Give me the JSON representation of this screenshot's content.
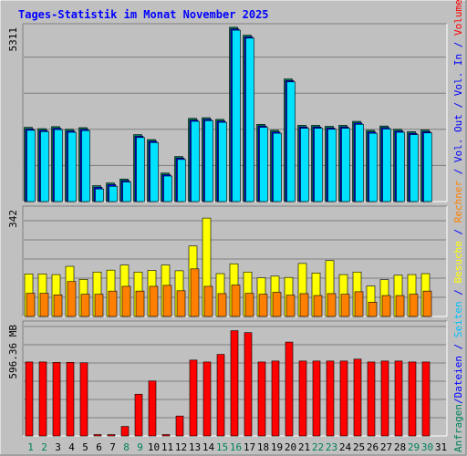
{
  "title": "Tages-Statistik im Monat November 2025",
  "side_labels": [
    {
      "text": "Anfragen",
      "color": "#00805c"
    },
    {
      "text": "/",
      "color": "#0000ff"
    },
    {
      "text": "Dateien",
      "color": "#0000ff"
    },
    {
      "text": " / ",
      "color": "#0000ff"
    },
    {
      "text": "Seiten",
      "color": "#00c0ff"
    },
    {
      "text": " / ",
      "color": "#0000ff"
    },
    {
      "text": "Besuche",
      "color": "#ffff00"
    },
    {
      "text": " / ",
      "color": "#0000ff"
    },
    {
      "text": "Rechner",
      "color": "#ff8000"
    },
    {
      "text": " / ",
      "color": "#0000ff"
    },
    {
      "text": "Vol. Out",
      "color": "#0000ff"
    },
    {
      "text": " / ",
      "color": "#0000ff"
    },
    {
      "text": "Vol. In",
      "color": "#0000ff"
    },
    {
      "text": " / ",
      "color": "#0000ff"
    },
    {
      "text": "Volumen",
      "color": "#ff0000"
    }
  ],
  "colors": {
    "background": "#c0c0c0",
    "title": "#0000ff",
    "weekend_day": "#00805c",
    "weekday": "#000000",
    "anfragen": "#00805c",
    "dateien": "#0000ff",
    "seiten": "#00e0ff",
    "besuche": "#ffff00",
    "rechner": "#ff8000",
    "volumen": "#ff0000"
  },
  "chart_data": [
    {
      "type": "bar",
      "panel": "top",
      "ymax_label": "5311",
      "ylim": [
        0,
        5311
      ],
      "categories": [
        "1",
        "2",
        "3",
        "4",
        "5",
        "6",
        "7",
        "8",
        "9",
        "10",
        "11",
        "12",
        "13",
        "14",
        "15",
        "16",
        "17",
        "18",
        "19",
        "20",
        "21",
        "22",
        "23",
        "24",
        "25",
        "26",
        "27",
        "28",
        "29",
        "30",
        "31"
      ],
      "weekend_days": [
        "1",
        "2",
        "8",
        "9",
        "15",
        "16",
        "22",
        "23",
        "29",
        "30"
      ],
      "series": [
        {
          "name": "Anfragen",
          "values": [
            2240,
            2200,
            2260,
            2180,
            2230,
            480,
            560,
            680,
            2020,
            1870,
            860,
            1360,
            2510,
            2530,
            2480,
            5260,
            5020,
            2330,
            2150,
            3700,
            2300,
            2300,
            2270,
            2300,
            2420,
            2150,
            2280,
            2180,
            2110,
            2160,
            null
          ]
        },
        {
          "name": "Dateien",
          "values": [
            2190,
            2150,
            2210,
            2130,
            2180,
            430,
            510,
            630,
            1970,
            1820,
            810,
            1310,
            2460,
            2480,
            2430,
            5210,
            4970,
            2280,
            2100,
            3650,
            2250,
            2250,
            2220,
            2250,
            2370,
            2100,
            2230,
            2130,
            2060,
            2110,
            null
          ]
        },
        {
          "name": "Seiten",
          "values": [
            2150,
            2110,
            2170,
            2090,
            2140,
            380,
            460,
            590,
            1930,
            1780,
            770,
            1270,
            2420,
            2440,
            2390,
            5170,
            4930,
            2240,
            2060,
            3610,
            2210,
            2210,
            2180,
            2210,
            2330,
            2060,
            2190,
            2090,
            2020,
            2070,
            null
          ]
        }
      ]
    },
    {
      "type": "bar",
      "panel": "middle",
      "ymax_label": "342",
      "ylim": [
        0,
        342
      ],
      "categories": [
        "1",
        "2",
        "3",
        "4",
        "5",
        "6",
        "7",
        "8",
        "9",
        "10",
        "11",
        "12",
        "13",
        "14",
        "15",
        "16",
        "17",
        "18",
        "19",
        "20",
        "21",
        "22",
        "23",
        "24",
        "25",
        "26",
        "27",
        "28",
        "29",
        "30",
        "31"
      ],
      "series": [
        {
          "name": "Besuche",
          "values": [
            134,
            134,
            132,
            158,
            117,
            140,
            146,
            162,
            140,
            145,
            162,
            144,
            222,
            310,
            135,
            166,
            140,
            122,
            127,
            123,
            167,
            137,
            176,
            132,
            140,
            96,
            116,
            130,
            132,
            135,
            null
          ]
        },
        {
          "name": "Rechner",
          "values": [
            73,
            73,
            68,
            110,
            70,
            70,
            80,
            95,
            80,
            95,
            98,
            81,
            150,
            95,
            72,
            99,
            73,
            70,
            76,
            67,
            72,
            66,
            72,
            70,
            78,
            45,
            66,
            66,
            70,
            80,
            null
          ]
        }
      ]
    },
    {
      "type": "bar",
      "panel": "bottom",
      "ymax_label": "596.36 MB",
      "ylim": [
        0,
        596.36
      ],
      "categories": [
        "1",
        "2",
        "3",
        "4",
        "5",
        "6",
        "7",
        "8",
        "9",
        "10",
        "11",
        "12",
        "13",
        "14",
        "15",
        "16",
        "17",
        "18",
        "19",
        "20",
        "21",
        "22",
        "23",
        "24",
        "25",
        "26",
        "27",
        "28",
        "29",
        "30",
        "31"
      ],
      "series": [
        {
          "name": "Volumen",
          "values": [
            390,
            390,
            388,
            388,
            386,
            5,
            5,
            50,
            220,
            290,
            5,
            105,
            400,
            390,
            430,
            555,
            545,
            390,
            395,
            495,
            395,
            395,
            395,
            395,
            405,
            390,
            395,
            395,
            390,
            390,
            null
          ]
        }
      ]
    }
  ]
}
